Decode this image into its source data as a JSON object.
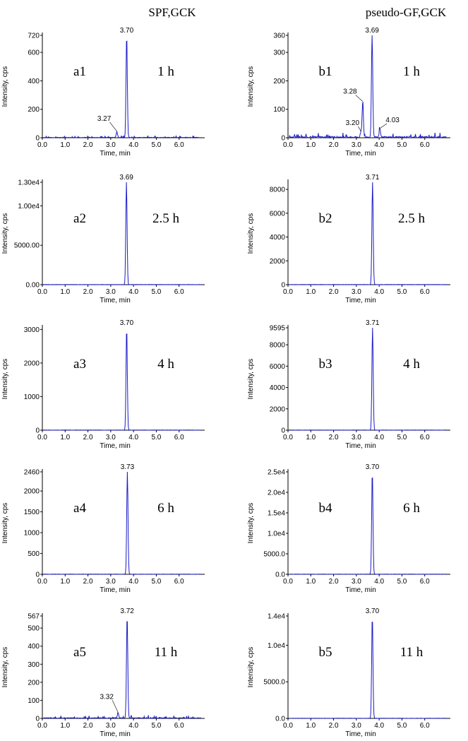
{
  "figure": {
    "column_titles": [
      "SPF,GCK",
      "pseudo-GF,GCK"
    ],
    "colors": {
      "trace": "#1c1cc8",
      "axis": "#000000"
    }
  },
  "chart_data": [
    {
      "type": "line",
      "panel_id": "a1",
      "time_label": "1 h",
      "column": 0,
      "row": 0,
      "xlabel": "Time, min",
      "ylabel": "Intensity, cps",
      "xlim": [
        0,
        7
      ],
      "ylim": [
        0,
        720
      ],
      "xticks": [
        {
          "v": 0,
          "label": "0.0"
        },
        {
          "v": 1,
          "label": "1.0"
        },
        {
          "v": 2,
          "label": "2.0"
        },
        {
          "v": 3,
          "label": "3.0"
        },
        {
          "v": 4,
          "label": "4.0"
        },
        {
          "v": 5,
          "label": "5.0"
        },
        {
          "v": 6,
          "label": "6.0"
        }
      ],
      "yticks": [
        {
          "v": 0,
          "label": "0"
        },
        {
          "v": 200,
          "label": "200"
        },
        {
          "v": 400,
          "label": "400"
        },
        {
          "v": 600,
          "label": "600"
        },
        {
          "v": 720,
          "label": "720"
        }
      ],
      "peaks": [
        {
          "x": 3.7,
          "y": 720,
          "label": "3.70"
        },
        {
          "x": 3.27,
          "y": 40,
          "label": "3.27"
        }
      ],
      "baseline_noise": 6,
      "peak_label_offsets": [
        [
          0,
          0
        ],
        [
          -18,
          -12
        ]
      ]
    },
    {
      "type": "line",
      "panel_id": "b1",
      "time_label": "1 h",
      "column": 1,
      "row": 0,
      "xlabel": "Time, min",
      "ylabel": "Intensity, cps",
      "xlim": [
        0,
        7
      ],
      "ylim": [
        0,
        360
      ],
      "xticks": [
        {
          "v": 0,
          "label": "0.0"
        },
        {
          "v": 1,
          "label": "1.0"
        },
        {
          "v": 2,
          "label": "2.0"
        },
        {
          "v": 3,
          "label": "3.0"
        },
        {
          "v": 4,
          "label": "4.0"
        },
        {
          "v": 5,
          "label": "5.0"
        },
        {
          "v": 6,
          "label": "6.0"
        }
      ],
      "yticks": [
        {
          "v": 0,
          "label": "0"
        },
        {
          "v": 100,
          "label": "100"
        },
        {
          "v": 200,
          "label": "200"
        },
        {
          "v": 300,
          "label": "300"
        },
        {
          "v": 360,
          "label": "360"
        }
      ],
      "peaks": [
        {
          "x": 3.69,
          "y": 360,
          "label": "3.69"
        },
        {
          "x": 3.28,
          "y": 125,
          "label": "3.28"
        },
        {
          "x": 3.2,
          "y": 20,
          "label": "3.20"
        },
        {
          "x": 4.03,
          "y": 30,
          "label": "4.03"
        }
      ],
      "baseline_noise": 8,
      "peak_label_offsets": [
        [
          0,
          0
        ],
        [
          -18,
          -8
        ],
        [
          -12,
          -6
        ],
        [
          18,
          -6
        ]
      ]
    },
    {
      "type": "line",
      "panel_id": "a2",
      "time_label": "2.5 h",
      "column": 0,
      "row": 1,
      "xlabel": "Time, min",
      "ylabel": "Intensity, cps",
      "xlim": [
        0,
        7
      ],
      "ylim": [
        0,
        13000
      ],
      "xticks": [
        {
          "v": 0,
          "label": "0.0"
        },
        {
          "v": 1,
          "label": "1.0"
        },
        {
          "v": 2,
          "label": "2.0"
        },
        {
          "v": 3,
          "label": "3.0"
        },
        {
          "v": 4,
          "label": "4.0"
        },
        {
          "v": 5,
          "label": "5.0"
        },
        {
          "v": 6,
          "label": "6.0"
        }
      ],
      "yticks": [
        {
          "v": 0,
          "label": "0.00"
        },
        {
          "v": 5000,
          "label": "5000.00"
        },
        {
          "v": 10000,
          "label": "1.00e4"
        },
        {
          "v": 13000,
          "label": "1.30e4"
        }
      ],
      "peaks": [
        {
          "x": 3.69,
          "y": 13000,
          "label": "3.69"
        }
      ],
      "baseline_noise": 0,
      "peak_label_offsets": [
        [
          0,
          0
        ]
      ]
    },
    {
      "type": "line",
      "panel_id": "b2",
      "time_label": "2.5 h",
      "column": 1,
      "row": 1,
      "xlabel": "Time, min",
      "ylabel": "Intensity, cps",
      "xlim": [
        0,
        7
      ],
      "ylim": [
        0,
        8600
      ],
      "xticks": [
        {
          "v": 0,
          "label": "0.0"
        },
        {
          "v": 1,
          "label": "1.0"
        },
        {
          "v": 2,
          "label": "2.0"
        },
        {
          "v": 3,
          "label": "3.0"
        },
        {
          "v": 4,
          "label": "4.0"
        },
        {
          "v": 5,
          "label": "5.0"
        },
        {
          "v": 6,
          "label": "6.0"
        }
      ],
      "yticks": [
        {
          "v": 0,
          "label": "0"
        },
        {
          "v": 2000,
          "label": "2000"
        },
        {
          "v": 4000,
          "label": "4000"
        },
        {
          "v": 6000,
          "label": "6000"
        },
        {
          "v": 8000,
          "label": "8000"
        }
      ],
      "peaks": [
        {
          "x": 3.71,
          "y": 8600,
          "label": "3.71"
        }
      ],
      "baseline_noise": 0,
      "peak_label_offsets": [
        [
          0,
          0
        ]
      ]
    },
    {
      "type": "line",
      "panel_id": "a3",
      "time_label": "4 h",
      "column": 0,
      "row": 2,
      "xlabel": "Time, min",
      "ylabel": "Intensity, cps",
      "xlim": [
        0,
        7
      ],
      "ylim": [
        0,
        3050
      ],
      "xticks": [
        {
          "v": 0,
          "label": "0.0"
        },
        {
          "v": 1,
          "label": "1.0"
        },
        {
          "v": 2,
          "label": "2.0"
        },
        {
          "v": 3,
          "label": "3.0"
        },
        {
          "v": 4,
          "label": "4.0"
        },
        {
          "v": 5,
          "label": "5.0"
        },
        {
          "v": 6,
          "label": "6.0"
        }
      ],
      "yticks": [
        {
          "v": 0,
          "label": "0"
        },
        {
          "v": 1000,
          "label": "1000"
        },
        {
          "v": 2000,
          "label": "2000"
        },
        {
          "v": 3000,
          "label": "3000"
        }
      ],
      "peaks": [
        {
          "x": 3.7,
          "y": 3050,
          "label": "3.70"
        }
      ],
      "baseline_noise": 0,
      "peak_label_offsets": [
        [
          0,
          0
        ]
      ]
    },
    {
      "type": "line",
      "panel_id": "b3",
      "time_label": "4 h",
      "column": 1,
      "row": 2,
      "xlabel": "Time, min",
      "ylabel": "Intensity, cps",
      "xlim": [
        0,
        7
      ],
      "ylim": [
        0,
        9595
      ],
      "xticks": [
        {
          "v": 0,
          "label": "0.0"
        },
        {
          "v": 1,
          "label": "1.0"
        },
        {
          "v": 2,
          "label": "2.0"
        },
        {
          "v": 3,
          "label": "3.0"
        },
        {
          "v": 4,
          "label": "4.0"
        },
        {
          "v": 5,
          "label": "5.0"
        },
        {
          "v": 6,
          "label": "6.0"
        }
      ],
      "yticks": [
        {
          "v": 0,
          "label": "0"
        },
        {
          "v": 2000,
          "label": "2000"
        },
        {
          "v": 4000,
          "label": "4000"
        },
        {
          "v": 6000,
          "label": "6000"
        },
        {
          "v": 8000,
          "label": "8000"
        },
        {
          "v": 9595,
          "label": "9595"
        }
      ],
      "peaks": [
        {
          "x": 3.71,
          "y": 9595,
          "label": "3.71"
        }
      ],
      "baseline_noise": 0,
      "peak_label_offsets": [
        [
          0,
          0
        ]
      ]
    },
    {
      "type": "line",
      "panel_id": "a4",
      "time_label": "6 h",
      "column": 0,
      "row": 3,
      "xlabel": "Time, min",
      "ylabel": "Intensity, cps",
      "xlim": [
        0,
        7
      ],
      "ylim": [
        0,
        2460
      ],
      "xticks": [
        {
          "v": 0,
          "label": "0.0"
        },
        {
          "v": 1,
          "label": "1.0"
        },
        {
          "v": 2,
          "label": "2.0"
        },
        {
          "v": 3,
          "label": "3.0"
        },
        {
          "v": 4,
          "label": "4.0"
        },
        {
          "v": 5,
          "label": "5.0"
        },
        {
          "v": 6,
          "label": "6.0"
        }
      ],
      "yticks": [
        {
          "v": 0,
          "label": "0"
        },
        {
          "v": 500,
          "label": "500"
        },
        {
          "v": 1000,
          "label": "1000"
        },
        {
          "v": 1500,
          "label": "1500"
        },
        {
          "v": 2000,
          "label": "2000"
        },
        {
          "v": 2460,
          "label": "2460"
        }
      ],
      "peaks": [
        {
          "x": 3.73,
          "y": 2460,
          "label": "3.73"
        }
      ],
      "baseline_noise": 0,
      "peak_label_offsets": [
        [
          0,
          0
        ]
      ]
    },
    {
      "type": "line",
      "panel_id": "b4",
      "time_label": "6 h",
      "column": 1,
      "row": 3,
      "xlabel": "Time, min",
      "ylabel": "Intensity, cps",
      "xlim": [
        0,
        7
      ],
      "ylim": [
        0,
        25000
      ],
      "xticks": [
        {
          "v": 0,
          "label": "0.0"
        },
        {
          "v": 1,
          "label": "1.0"
        },
        {
          "v": 2,
          "label": "2.0"
        },
        {
          "v": 3,
          "label": "3.0"
        },
        {
          "v": 4,
          "label": "4.0"
        },
        {
          "v": 5,
          "label": "5.0"
        },
        {
          "v": 6,
          "label": "6.0"
        }
      ],
      "yticks": [
        {
          "v": 0,
          "label": "0.0"
        },
        {
          "v": 5000,
          "label": "5000.0"
        },
        {
          "v": 10000,
          "label": "1.0e4"
        },
        {
          "v": 15000,
          "label": "1.5e4"
        },
        {
          "v": 20000,
          "label": "2.0e4"
        },
        {
          "v": 25000,
          "label": "2.5e4"
        }
      ],
      "peaks": [
        {
          "x": 3.7,
          "y": 25000,
          "label": "3.70"
        }
      ],
      "baseline_noise": 0,
      "peak_label_offsets": [
        [
          0,
          0
        ]
      ]
    },
    {
      "type": "line",
      "panel_id": "a5",
      "time_label": "11 h",
      "column": 0,
      "row": 4,
      "xlabel": "Time, min",
      "ylabel": "Intensity, cps",
      "xlim": [
        0,
        7
      ],
      "ylim": [
        0,
        567
      ],
      "xticks": [
        {
          "v": 0,
          "label": "0.0"
        },
        {
          "v": 1,
          "label": "1.0"
        },
        {
          "v": 2,
          "label": "2.0"
        },
        {
          "v": 3,
          "label": "3.0"
        },
        {
          "v": 4,
          "label": "4.0"
        },
        {
          "v": 5,
          "label": "5.0"
        },
        {
          "v": 6,
          "label": "6.0"
        }
      ],
      "yticks": [
        {
          "v": 0,
          "label": "0"
        },
        {
          "v": 100,
          "label": "100"
        },
        {
          "v": 200,
          "label": "200"
        },
        {
          "v": 300,
          "label": "300"
        },
        {
          "v": 400,
          "label": "400"
        },
        {
          "v": 500,
          "label": "500"
        },
        {
          "v": 567,
          "label": "567"
        }
      ],
      "peaks": [
        {
          "x": 3.72,
          "y": 567,
          "label": "3.72"
        },
        {
          "x": 3.32,
          "y": 30,
          "label": "3.32"
        }
      ],
      "baseline_noise": 7,
      "peak_label_offsets": [
        [
          0,
          0
        ],
        [
          -16,
          -16
        ]
      ]
    },
    {
      "type": "line",
      "panel_id": "b5",
      "time_label": "11 h",
      "column": 1,
      "row": 4,
      "xlabel": "Time, min",
      "ylabel": "Intensity, cps",
      "xlim": [
        0,
        7
      ],
      "ylim": [
        0,
        14000
      ],
      "xticks": [
        {
          "v": 0,
          "label": "0.0"
        },
        {
          "v": 1,
          "label": "1.0"
        },
        {
          "v": 2,
          "label": "2.0"
        },
        {
          "v": 3,
          "label": "3.0"
        },
        {
          "v": 4,
          "label": "4.0"
        },
        {
          "v": 5,
          "label": "5.0"
        },
        {
          "v": 6,
          "label": "6.0"
        }
      ],
      "yticks": [
        {
          "v": 0,
          "label": "0.0"
        },
        {
          "v": 5000,
          "label": "5000.0"
        },
        {
          "v": 10000,
          "label": "1.0e4"
        },
        {
          "v": 14000,
          "label": "1.4e4"
        }
      ],
      "peaks": [
        {
          "x": 3.7,
          "y": 14000,
          "label": "3.70"
        }
      ],
      "baseline_noise": 0,
      "peak_label_offsets": [
        [
          0,
          0
        ]
      ]
    }
  ]
}
